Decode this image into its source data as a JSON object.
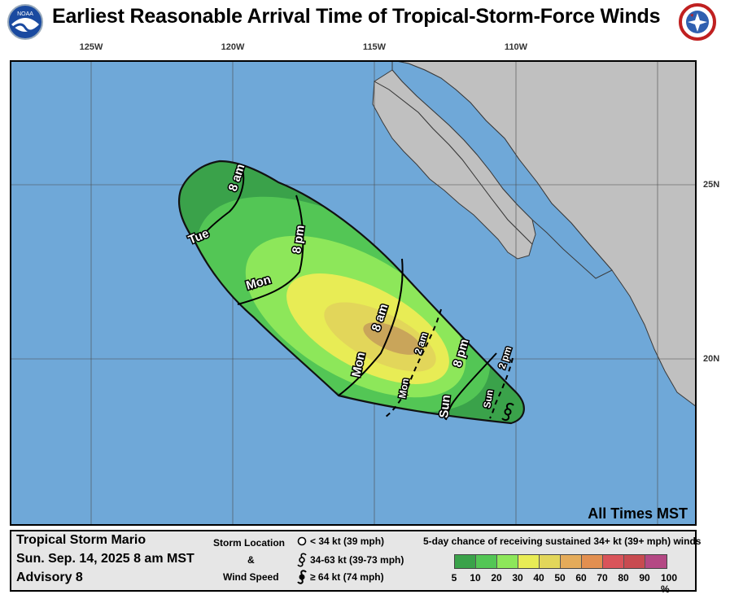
{
  "header": {
    "title": "Earliest Reasonable Arrival Time of Tropical-Storm-Force Winds",
    "noaa_logo_text": "NOAA",
    "nws_logo_text": "NATIONAL WEATHER SERVICE"
  },
  "map": {
    "lon_labels": [
      "125W",
      "120W",
      "115W",
      "110W"
    ],
    "lat_labels": [
      "25N",
      "20N"
    ],
    "colors": {
      "ocean": "#6fa8d8",
      "land": "#c0c0c0",
      "coast": "#3a3a3a"
    },
    "time_labels": [
      "8 am",
      "Tue",
      "8 pm",
      "Mon",
      "8 am",
      "Mon",
      "2 am",
      "Mon",
      "8 pm",
      "Sun",
      "2 pm",
      "Sun"
    ],
    "all_times": "All Times MST"
  },
  "legend": {
    "storm_name": "Tropical Storm Mario",
    "datetime": "Sun. Sep. 14, 2025  8 am MST",
    "advisory": "Advisory 8",
    "storm_location": "Storm Location",
    "and": "&",
    "wind_speed": "Wind Speed",
    "ws_items": [
      "< 34 kt (39 mph)",
      "34-63 kt (39-73 mph)",
      "≥ 64 kt (74 mph)"
    ],
    "chance_title": "5-day chance of receiving sustained 34+ kt (39+ mph) winds",
    "scale_labels": [
      "5",
      "10",
      "20",
      "30",
      "40",
      "50",
      "60",
      "70",
      "80",
      "90",
      "100 %"
    ],
    "scale_colors": [
      "#3aa24a",
      "#53c655",
      "#8de75a",
      "#e8ec55",
      "#e2d65a",
      "#e4ab5a",
      "#e28f50",
      "#d9545a",
      "#c84b50",
      "#b44884"
    ]
  }
}
